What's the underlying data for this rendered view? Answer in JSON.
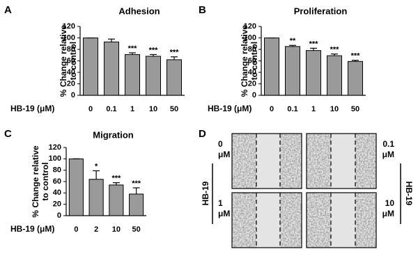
{
  "chart_data": [
    {
      "type": "bar",
      "panel": "A",
      "title": "Adhesion",
      "ylabel": [
        "% Change relative",
        "to control"
      ],
      "xlabel": "HB-19 (μM)",
      "categories": [
        "0",
        "0.1",
        "1",
        "10",
        "50"
      ],
      "values": [
        100,
        93,
        71,
        68,
        62
      ],
      "errors": [
        0,
        5,
        3,
        3,
        5
      ],
      "significance": [
        null,
        null,
        "***",
        "***",
        "***"
      ],
      "ylim": [
        0,
        120
      ],
      "yticks": [
        0,
        20,
        40,
        60,
        80,
        100,
        120
      ],
      "color": "#9a9a9a"
    },
    {
      "type": "bar",
      "panel": "B",
      "title": "Proliferation",
      "ylabel": [
        "% Change relative",
        "to control"
      ],
      "xlabel": "HB-19 (μM)",
      "categories": [
        "0",
        "0.1",
        "1",
        "10",
        "50"
      ],
      "values": [
        100,
        85,
        78,
        69,
        59
      ],
      "errors": [
        0,
        2,
        4,
        3,
        2
      ],
      "significance": [
        null,
        "**",
        "***",
        "***",
        "***"
      ],
      "ylim": [
        0,
        120
      ],
      "yticks": [
        0,
        20,
        40,
        60,
        80,
        100,
        120
      ],
      "color": "#9a9a9a"
    },
    {
      "type": "bar",
      "panel": "C",
      "title": "Migration",
      "ylabel": [
        "% Change relative",
        "to control"
      ],
      "xlabel": "HB-19 (μM)",
      "categories": [
        "0",
        "2",
        "10",
        "50"
      ],
      "values": [
        100,
        64,
        54,
        38
      ],
      "errors": [
        0,
        15,
        4,
        11
      ],
      "significance": [
        null,
        "*",
        "***",
        "***"
      ],
      "ylim": [
        0,
        120
      ],
      "yticks": [
        0,
        20,
        40,
        60,
        80,
        100,
        120
      ],
      "color": "#9a9a9a"
    }
  ],
  "panel_d": {
    "label": "D",
    "left_group": "HB-19",
    "right_group": "HB-19",
    "images": [
      {
        "dose": "0",
        "unit": "μM"
      },
      {
        "dose": "0.1",
        "unit": "μM"
      },
      {
        "dose": "1",
        "unit": "μM"
      },
      {
        "dose": "10",
        "unit": "μM"
      }
    ]
  }
}
